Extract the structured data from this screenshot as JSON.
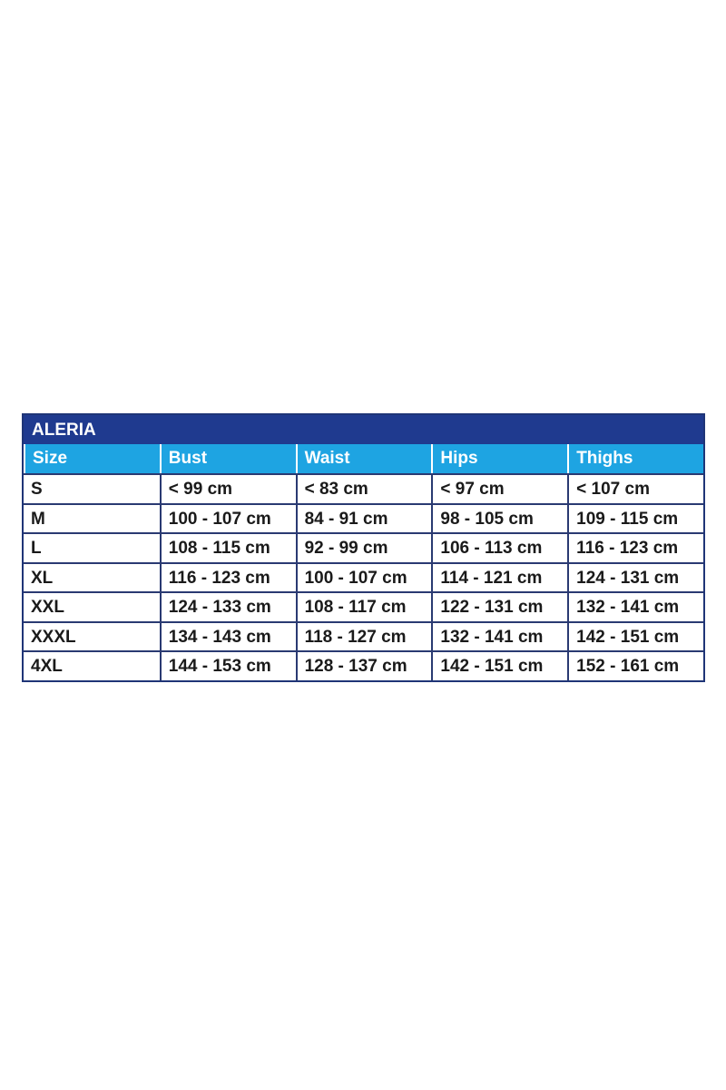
{
  "table": {
    "title": "ALERIA",
    "headers": [
      "Size",
      "Bust",
      "Waist",
      "Hips",
      "Thighs"
    ],
    "rows": [
      [
        "S",
        "< 99 cm",
        "< 83 cm",
        "< 97 cm",
        "< 107 cm"
      ],
      [
        "M",
        "100 - 107 cm",
        "84 - 91 cm",
        "98 - 105 cm",
        "109 - 115 cm"
      ],
      [
        "L",
        "108 - 115 cm",
        "92 - 99 cm",
        "106 - 113 cm",
        "116 - 123 cm"
      ],
      [
        "XL",
        "116 - 123 cm",
        "100 - 107 cm",
        "114 - 121 cm",
        "124 - 131 cm"
      ],
      [
        "XXL",
        "124 - 133 cm",
        "108 - 117 cm",
        "122 - 131 cm",
        "132 - 141 cm"
      ],
      [
        "XXXL",
        "134 - 143 cm",
        "118 - 127 cm",
        "132 - 141 cm",
        "142 - 151 cm"
      ],
      [
        "4XL",
        "144 - 153 cm",
        "128 - 137 cm",
        "142 - 151 cm",
        "152 - 161 cm"
      ]
    ],
    "colors": {
      "title_bg": "#1f3a8f",
      "header_bg": "#1ea4e2",
      "border": "#2a3a72"
    }
  }
}
